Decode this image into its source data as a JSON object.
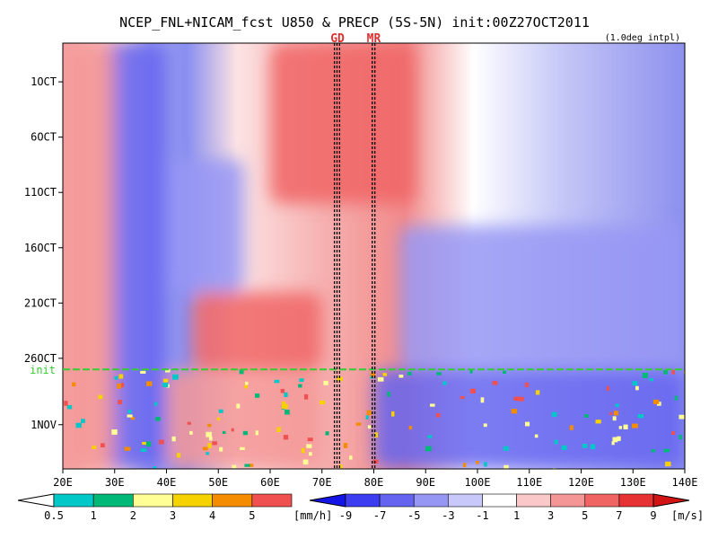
{
  "chart_data": {
    "type": "heatmap",
    "title": "NCEP_FNL+NICAM_fcst U850 & PRECP (5S-5N) init:00Z27OCT2011",
    "subtitle": "(1.0deg intpl)",
    "x_ticks": [
      {
        "label": "20E",
        "value": 20
      },
      {
        "label": "30E",
        "value": 30
      },
      {
        "label": "40E",
        "value": 40
      },
      {
        "label": "50E",
        "value": 50
      },
      {
        "label": "60E",
        "value": 60
      },
      {
        "label": "70E",
        "value": 70
      },
      {
        "label": "80E",
        "value": 80
      },
      {
        "label": "90E",
        "value": 90
      },
      {
        "label": "100E",
        "value": 100
      },
      {
        "label": "110E",
        "value": 110
      },
      {
        "label": "120E",
        "value": 120
      },
      {
        "label": "130E",
        "value": 130
      },
      {
        "label": "140E",
        "value": 140
      }
    ],
    "xlim": [
      20,
      140
    ],
    "y_ticks": [
      {
        "label": "1OCT",
        "value": 1
      },
      {
        "label": "6OCT",
        "value": 6
      },
      {
        "label": "11OCT",
        "value": 11
      },
      {
        "label": "16OCT",
        "value": 16
      },
      {
        "label": "21OCT",
        "value": 21
      },
      {
        "label": "26OCT",
        "value": 26
      },
      {
        "label": "1NOV",
        "value": 32
      }
    ],
    "ylim": [
      -2.5,
      36
    ],
    "y_axis_direction": "downward",
    "init_line": {
      "label": "init",
      "value": 27,
      "color": "#33cc33"
    },
    "markers": [
      {
        "label": "GD",
        "lon": 73,
        "lines": [
          72.4,
          72.9,
          73.4
        ],
        "color": "#e03030"
      },
      {
        "label": "MR",
        "lon": 80,
        "lines": [
          79.7,
          80.2
        ],
        "color": "#e03030"
      }
    ],
    "precip_colorbar": {
      "unit": "[mm/h]",
      "labels": [
        "0.5",
        "1",
        "2",
        "3",
        "4",
        "5"
      ],
      "colors": [
        "#00c8c8",
        "#00b878",
        "#ffff96",
        "#f5d200",
        "#f58c00",
        "#f05050"
      ]
    },
    "u850_colorbar": {
      "unit": "[m/s]",
      "labels": [
        "-9",
        "-7",
        "-5",
        "-3",
        "-1",
        "1",
        "3",
        "5",
        "7",
        "9"
      ],
      "colors": [
        "#1414e6",
        "#3c3cf0",
        "#6464f0",
        "#9696f5",
        "#c8c8fa",
        "#ffffff",
        "#fac8c8",
        "#f59696",
        "#f06464",
        "#e63232",
        "#d21414"
      ]
    },
    "u850_field_description_regions": [
      {
        "lon": [
          28,
          40
        ],
        "days": [
          -2.5,
          36
        ],
        "u": -6
      },
      {
        "lon": [
          40,
          55
        ],
        "days": [
          8,
          20
        ],
        "u": -4
      },
      {
        "lon": [
          85,
          140
        ],
        "days": [
          14,
          27
        ],
        "u": -5
      },
      {
        "lon": [
          60,
          88
        ],
        "days": [
          -2.5,
          12
        ],
        "u": 6
      },
      {
        "lon": [
          45,
          70
        ],
        "days": [
          20,
          27
        ],
        "u": 5
      },
      {
        "lon": [
          20,
          30
        ],
        "days": [
          -2.5,
          36
        ],
        "u": 3
      },
      {
        "lon": [
          40,
          70
        ],
        "days": [
          27,
          36
        ],
        "u": 4
      },
      {
        "lon": [
          80,
          140
        ],
        "days": [
          27,
          36
        ],
        "u": -6
      }
    ]
  }
}
